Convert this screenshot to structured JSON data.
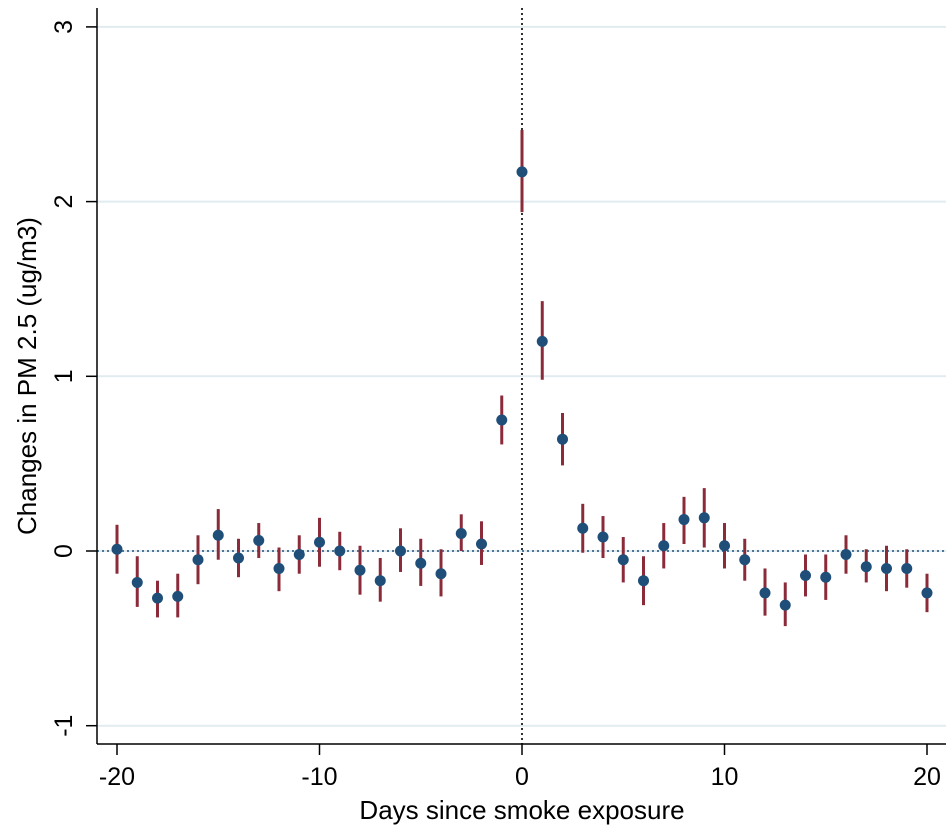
{
  "chart_data": {
    "type": "scatter",
    "title": "",
    "xlabel": "Days since smoke exposure",
    "ylabel": "Changes in PM 2.5 (ug/m3)",
    "xlim": [
      -21,
      21
    ],
    "ylim": [
      -1.1,
      3.1
    ],
    "xticks": [
      -20,
      -10,
      0,
      10,
      20
    ],
    "yticks": [
      -1,
      0,
      1,
      2,
      3
    ],
    "grid": true,
    "legend": "none",
    "reference_lines": {
      "x": 0,
      "y": 0
    },
    "colors": {
      "point": "#1f4e79",
      "ci": "#8b2b3a",
      "grid": "#e1ecf0",
      "reference": "#1f4e79"
    },
    "series": [
      {
        "x": [
          -20,
          -19,
          -18,
          -17,
          -16,
          -15,
          -14,
          -13,
          -12,
          -11,
          -10,
          -9,
          -8,
          -7,
          -6,
          -5,
          -4,
          -3,
          -2,
          -1,
          0,
          1,
          2,
          3,
          4,
          5,
          6,
          7,
          8,
          9,
          10,
          11,
          12,
          13,
          14,
          15,
          16,
          17,
          18,
          19,
          20
        ],
        "y": [
          0.01,
          -0.18,
          -0.27,
          -0.26,
          -0.05,
          0.09,
          -0.04,
          0.06,
          -0.1,
          -0.02,
          0.05,
          0.0,
          -0.11,
          -0.17,
          0.0,
          -0.07,
          -0.13,
          0.1,
          0.04,
          0.75,
          2.17,
          1.2,
          0.64,
          0.13,
          0.08,
          -0.05,
          -0.17,
          0.03,
          0.18,
          0.19,
          0.03,
          -0.05,
          -0.24,
          -0.31,
          -0.14,
          -0.15,
          -0.02,
          -0.09,
          -0.1,
          -0.1,
          -0.24
        ],
        "ci_low": [
          -0.13,
          -0.32,
          -0.38,
          -0.38,
          -0.19,
          -0.05,
          -0.15,
          -0.04,
          -0.23,
          -0.13,
          -0.09,
          -0.11,
          -0.25,
          -0.29,
          -0.12,
          -0.2,
          -0.26,
          0.0,
          -0.08,
          0.61,
          1.94,
          0.98,
          0.49,
          -0.01,
          -0.04,
          -0.18,
          -0.31,
          -0.1,
          0.04,
          0.02,
          -0.1,
          -0.17,
          -0.37,
          -0.43,
          -0.26,
          -0.28,
          -0.13,
          -0.18,
          -0.23,
          -0.21,
          -0.35
        ],
        "ci_high": [
          0.15,
          -0.03,
          -0.17,
          -0.13,
          0.09,
          0.24,
          0.07,
          0.16,
          0.02,
          0.09,
          0.19,
          0.11,
          0.03,
          -0.04,
          0.13,
          0.07,
          0.01,
          0.21,
          0.17,
          0.89,
          2.41,
          1.43,
          0.79,
          0.27,
          0.2,
          0.08,
          -0.03,
          0.16,
          0.31,
          0.36,
          0.16,
          0.07,
          -0.1,
          -0.18,
          -0.02,
          -0.02,
          0.09,
          0.01,
          0.03,
          0.01,
          -0.13
        ]
      }
    ]
  }
}
